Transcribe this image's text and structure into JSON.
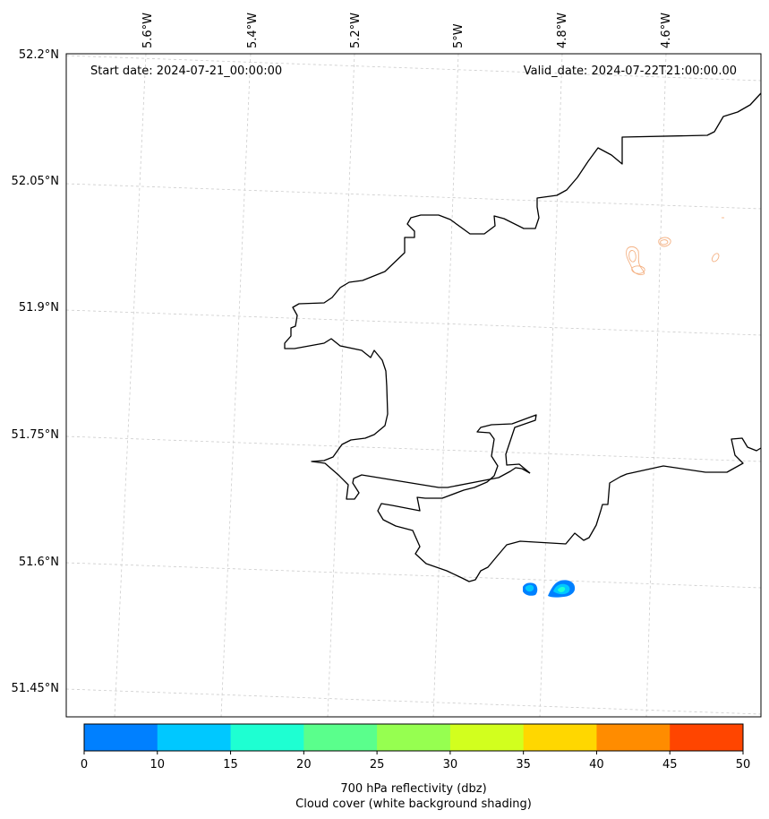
{
  "header": {
    "start_date": "Start date: 2024-07-21_00:00:00",
    "valid_date": "Valid_date: 2024-07-22T21:00:00.00"
  },
  "lon_labels": [
    "5.6°W",
    "5.4°W",
    "5.2°W",
    "5°W",
    "4.8°W",
    "4.6°W"
  ],
  "lat_labels": [
    "52.2°N",
    "52.05°N",
    "51.9°N",
    "51.75°N",
    "51.6°N",
    "51.45°N"
  ],
  "colorbar": {
    "levels": [
      0,
      10,
      15,
      20,
      25,
      30,
      35,
      40,
      45,
      50
    ],
    "tick_labels": [
      "0",
      "10",
      "15",
      "20",
      "25",
      "30",
      "35",
      "40",
      "45",
      "50"
    ],
    "colors": [
      "#0080ff",
      "#00c8ff",
      "#1effd2",
      "#5aff8c",
      "#96ff50",
      "#d2ff1e",
      "#ffd700",
      "#ff8c00",
      "#ff4500"
    ],
    "label_line1": "700 hPa reflectivity (dbz)",
    "label_line2": "Cloud cover (white background shading)"
  },
  "colors": {
    "coastline": "#000000",
    "gridline": "#cccccc",
    "cloud_contour": "#f4b183"
  }
}
